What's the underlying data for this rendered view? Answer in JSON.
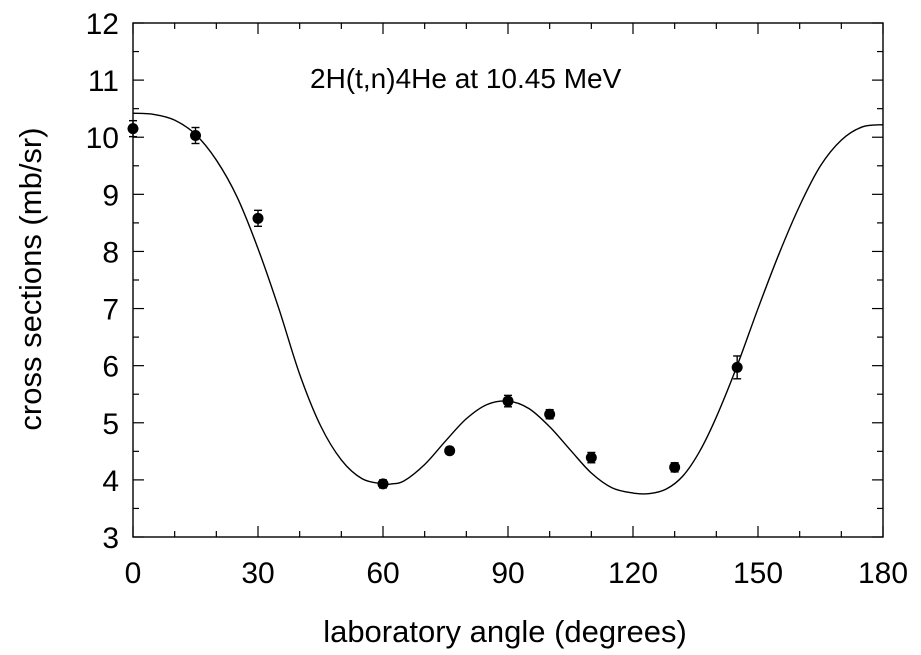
{
  "chart_data": {
    "type": "scatter",
    "title": "",
    "annotation": "2H(t,n)4He at 10.45 MeV",
    "xlabel": "laboratory angle (degrees)",
    "ylabel": "cross sections (mb/sr)",
    "xlim": [
      0,
      180
    ],
    "ylim": [
      3,
      12
    ],
    "xticks": [
      "0",
      "30",
      "60",
      "90",
      "120",
      "150",
      "180"
    ],
    "yticks": [
      "3",
      "4",
      "5",
      "6",
      "7",
      "8",
      "9",
      "10",
      "11",
      "12"
    ],
    "grid": false,
    "legend": "none",
    "series": [
      {
        "kind": "points_with_errorbars",
        "x": [
          0,
          15,
          30,
          60,
          76,
          90,
          100,
          110,
          130,
          145
        ],
        "y": [
          10.15,
          10.03,
          8.58,
          3.93,
          4.51,
          5.38,
          5.15,
          4.39,
          4.22,
          5.97
        ],
        "yerr": [
          0.14,
          0.14,
          0.14,
          0.07,
          0.06,
          0.1,
          0.08,
          0.09,
          0.08,
          0.2
        ]
      },
      {
        "kind": "fit_curve",
        "x": [
          0,
          5,
          10,
          15,
          20,
          25,
          30,
          35,
          40,
          45,
          50,
          55,
          60,
          62,
          65,
          70,
          75,
          80,
          85,
          90,
          95,
          100,
          105,
          110,
          115,
          120,
          124,
          128,
          132,
          136,
          140,
          145,
          150,
          155,
          160,
          165,
          170,
          175,
          180
        ],
        "y": [
          10.42,
          10.4,
          10.3,
          10.05,
          9.6,
          8.95,
          8.05,
          7.0,
          5.85,
          4.95,
          4.35,
          4.02,
          3.93,
          3.93,
          3.98,
          4.27,
          4.68,
          5.07,
          5.32,
          5.38,
          5.25,
          4.93,
          4.52,
          4.12,
          3.86,
          3.77,
          3.76,
          3.84,
          4.07,
          4.5,
          5.1,
          6.0,
          7.0,
          7.95,
          8.8,
          9.5,
          9.95,
          10.18,
          10.22
        ]
      }
    ]
  }
}
